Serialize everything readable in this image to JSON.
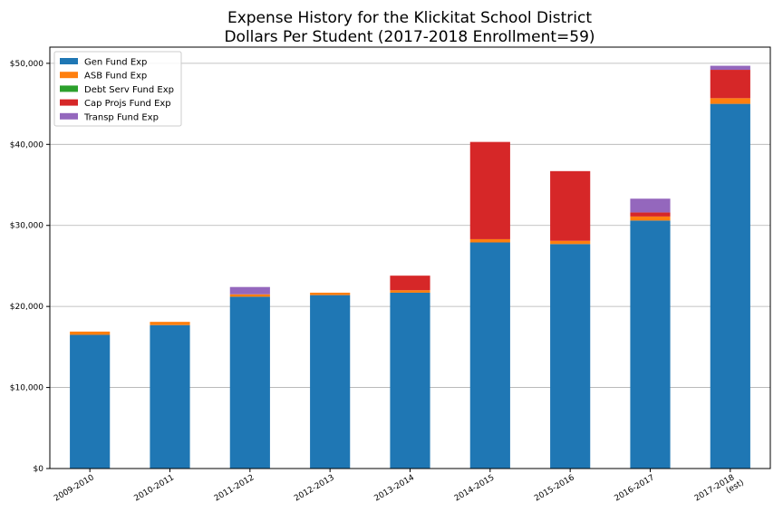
{
  "chart_data": {
    "type": "bar",
    "stacked": true,
    "title": [
      "Expense History for the Klickitat School District",
      "Dollars Per Student (2017-2018 Enrollment=59)"
    ],
    "xlabel": "",
    "ylabel": "",
    "categories": [
      [
        "2009-2010"
      ],
      [
        "2010-2011"
      ],
      [
        "2011-2012"
      ],
      [
        "2012-2013"
      ],
      [
        "2013-2014"
      ],
      [
        "2014-2015"
      ],
      [
        "2015-2016"
      ],
      [
        "2016-2017"
      ],
      [
        "2017-2018",
        "(est)"
      ]
    ],
    "ylim": [
      0,
      52000
    ],
    "yticks": [
      0,
      10000,
      20000,
      30000,
      40000,
      50000
    ],
    "ytick_labels": [
      "$0",
      "$10,000",
      "$20,000",
      "$30,000",
      "$40,000",
      "$50,000"
    ],
    "grid": "y",
    "legend_position": "top-left",
    "series": [
      {
        "name": "Gen Fund Exp",
        "color": "#1f77b4",
        "values": [
          16500,
          17700,
          21200,
          21400,
          21700,
          27900,
          27700,
          30600,
          45000
        ]
      },
      {
        "name": "ASB Fund Exp",
        "color": "#ff7f0e",
        "values": [
          400,
          400,
          300,
          300,
          300,
          400,
          400,
          500,
          700
        ]
      },
      {
        "name": "Debt Serv Fund Exp",
        "color": "#2ca02c",
        "values": [
          0,
          0,
          0,
          0,
          0,
          0,
          0,
          0,
          0
        ]
      },
      {
        "name": "Cap Projs Fund Exp",
        "color": "#d62728",
        "values": [
          0,
          0,
          0,
          0,
          1800,
          12000,
          8600,
          500,
          3500
        ]
      },
      {
        "name": "Transp Fund Exp",
        "color": "#9467bd",
        "values": [
          0,
          0,
          900,
          0,
          0,
          0,
          0,
          1700,
          500
        ]
      }
    ]
  }
}
